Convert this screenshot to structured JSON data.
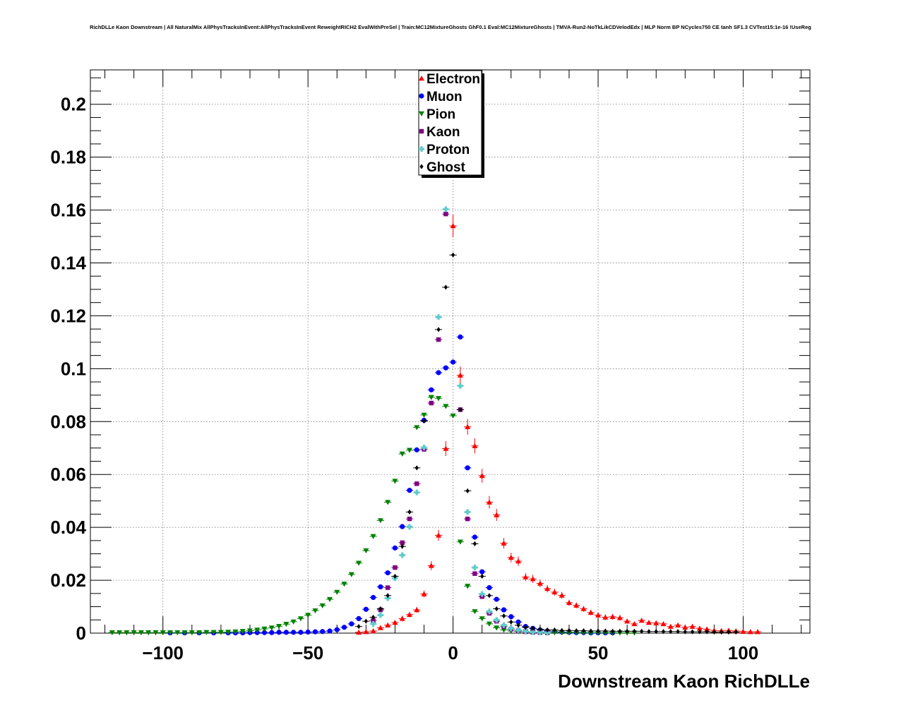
{
  "title": "RichDLLe Kaon Downstream | All NaturalMix AllPhysTracksInEvent:AllPhysTracksInEvent ReweightRICH2 EvalWithPreSel | Train:MC12MixtureGhosts GhF0.1 Eval:MC12MixtureGhosts | TMVA-Run2-NoTkLikCDVelodEdx | MLP Norm BP NCycles750 CE tanh SF1.3 CVTest15:1e-16 !UseReg",
  "chart_data": {
    "type": "scatter",
    "title": "RichDLLe Kaon Downstream | All NaturalMix AllPhysTracksInEvent:AllPhysTracksInEvent ReweightRICH2 EvalWithPreSel | Train:MC12MixtureGhosts GhF0.1 Eval:MC12MixtureGhosts | TMVA-Run2-NoTkLikCDVelodEdx | MLP Norm BP NCycles750 CE tanh SF1.3 CVTest15:1e-16 !UseReg",
    "xlabel": "Downstream Kaon RichDLLe",
    "ylabel": "",
    "xlim": [
      -125,
      123
    ],
    "ylim": [
      0,
      0.213
    ],
    "x_ticks": [
      -100,
      -50,
      0,
      50,
      100
    ],
    "x_tick_labels": [
      "−100",
      "−50",
      "0",
      "50",
      "100"
    ],
    "y_ticks": [
      0,
      0.02,
      0.04,
      0.06,
      0.08,
      0.1,
      0.12,
      0.14,
      0.16,
      0.18,
      0.2
    ],
    "y_tick_labels": [
      "0",
      "0.02",
      "0.04",
      "0.06",
      "0.08",
      "0.1",
      "0.12",
      "0.14",
      "0.16",
      "0.18",
      "0.2"
    ],
    "grid": true,
    "legend_position": "top-center",
    "series": [
      {
        "name": "Electron",
        "color": "#ff0000",
        "marker": "triangle-up",
        "x": [
          -32.5,
          -30,
          -27.5,
          -25,
          -22.5,
          -20,
          -17.5,
          -15,
          -12.5,
          -10,
          -7.5,
          -5,
          -2.5,
          0,
          2.5,
          5,
          7.5,
          10,
          12.5,
          15,
          17.5,
          20,
          22.5,
          25,
          27.5,
          30,
          32.5,
          35,
          37.5,
          40,
          42.5,
          45,
          47.5,
          50,
          52.5,
          55,
          57.5,
          60,
          62.5,
          65,
          67.5,
          70,
          72.5,
          75,
          77.5,
          80,
          82.5,
          85,
          87.5,
          90,
          92.5,
          95,
          97.5,
          100,
          102.5,
          105
        ],
        "y": [
          0.0003,
          0.0005,
          0.0008,
          0.002,
          0.003,
          0.004,
          0.0055,
          0.007,
          0.0088,
          0.0148,
          0.0255,
          0.037,
          0.0698,
          0.154,
          0.0975,
          0.078,
          0.0708,
          0.0595,
          0.0495,
          0.0447,
          0.034,
          0.0286,
          0.0272,
          0.0212,
          0.0205,
          0.0188,
          0.0168,
          0.0155,
          0.0143,
          0.0115,
          0.0105,
          0.0092,
          0.0078,
          0.0068,
          0.006,
          0.0062,
          0.0058,
          0.0045,
          0.0035,
          0.0048,
          0.004,
          0.0038,
          0.0035,
          0.0025,
          0.003,
          0.0022,
          0.0025,
          0.0018,
          0.0015,
          0.001,
          0.0009,
          0.001,
          0.0008,
          0.0006,
          0.0005,
          0.0005
        ]
      },
      {
        "name": "Muon",
        "color": "#0000ff",
        "marker": "circle",
        "x": [
          -97.5,
          -92.5,
          -87.5,
          -82.5,
          -77.5,
          -75,
          -72.5,
          -70,
          -67.5,
          -65,
          -62.5,
          -60,
          -57.5,
          -55,
          -52.5,
          -50,
          -47.5,
          -45,
          -42.5,
          -40,
          -37.5,
          -35,
          -32.5,
          -30,
          -27.5,
          -25,
          -22.5,
          -20,
          -17.5,
          -15,
          -12.5,
          -10,
          -7.5,
          -5,
          -2.5,
          0,
          2.5,
          5,
          7.5,
          10,
          12.5,
          15,
          17.5,
          20,
          22.5,
          25,
          27.5,
          30,
          32.5,
          35,
          37.5,
          40,
          42.5,
          45,
          47.5,
          50,
          52.5,
          55
        ],
        "y": [
          0.0001,
          0.0001,
          0.0001,
          0.0001,
          0.0001,
          0.0001,
          0.0001,
          0.0002,
          0.0002,
          0.0002,
          0.0002,
          0.0003,
          0.0003,
          0.0003,
          0.0003,
          0.0004,
          0.0005,
          0.0006,
          0.0008,
          0.0013,
          0.0022,
          0.0035,
          0.0055,
          0.009,
          0.0135,
          0.0175,
          0.0228,
          0.0322,
          0.0403,
          0.054,
          0.0693,
          0.0805,
          0.092,
          0.0985,
          0.1003,
          0.1025,
          0.112,
          0.0625,
          0.0363,
          0.0232,
          0.0172,
          0.0128,
          0.0088,
          0.0062,
          0.0042,
          0.0025,
          0.0018,
          0.0012,
          0.0008,
          0.0006,
          0.0004,
          0.0003,
          0.0002,
          0.0002,
          0.0001,
          0.0001,
          0.0001,
          0.0001
        ]
      },
      {
        "name": "Pion",
        "color": "#008000",
        "marker": "triangle-down",
        "x": [
          -117.5,
          -115,
          -112.5,
          -110,
          -107.5,
          -105,
          -102.5,
          -100,
          -97.5,
          -95,
          -92.5,
          -90,
          -87.5,
          -85,
          -82.5,
          -80,
          -77.5,
          -75,
          -72.5,
          -70,
          -67.5,
          -65,
          -62.5,
          -60,
          -57.5,
          -55,
          -52.5,
          -50,
          -47.5,
          -45,
          -42.5,
          -40,
          -37.5,
          -35,
          -32.5,
          -30,
          -27.5,
          -25,
          -22.5,
          -20,
          -17.5,
          -15,
          -12.5,
          -10,
          -7.5,
          -5,
          -2.5,
          0,
          2.5,
          5,
          7.5,
          10,
          12.5,
          15,
          17.5,
          20,
          22.5,
          25,
          27.5,
          30,
          32.5,
          35,
          37.5,
          40,
          42.5,
          45,
          47.5,
          50,
          52.5,
          55,
          57.5,
          60,
          62.5
        ],
        "y": [
          0.0002,
          0.0002,
          0.0002,
          0.0002,
          0.0002,
          0.0002,
          0.0002,
          0.0002,
          0.0002,
          0.0002,
          0.0002,
          0.0002,
          0.0002,
          0.0003,
          0.0003,
          0.0003,
          0.0004,
          0.0005,
          0.0007,
          0.0009,
          0.0012,
          0.0016,
          0.002,
          0.0026,
          0.0034,
          0.0043,
          0.0055,
          0.0068,
          0.0085,
          0.0104,
          0.0128,
          0.0155,
          0.0186,
          0.0222,
          0.0265,
          0.0312,
          0.0366,
          0.0426,
          0.0495,
          0.0575,
          0.0678,
          0.0692,
          0.0778,
          0.0825,
          0.0892,
          0.0888,
          0.0858,
          0.0822,
          0.0345,
          0.0178,
          0.0082,
          0.0055,
          0.0035,
          0.002,
          0.0012,
          0.0008,
          0.0006,
          0.0005,
          0.0004,
          0.0003,
          0.0003,
          0.0002,
          0.0002,
          0.0002,
          0.0002,
          0.0001,
          0.0001,
          0.0001,
          0.0001,
          0.0001,
          0.0001,
          0.0001,
          0.0001
        ]
      },
      {
        "name": "Kaon",
        "color": "#800080",
        "marker": "square",
        "x": [
          -27.5,
          -25,
          -22.5,
          -20,
          -17.5,
          -15,
          -12.5,
          -10,
          -7.5,
          -5,
          -2.5,
          0,
          2.5,
          5,
          7.5,
          10,
          12.5,
          15,
          17.5,
          20,
          22.5,
          25,
          27.5,
          30,
          32.5
        ],
        "y": [
          0.0048,
          0.0088,
          0.0172,
          0.0248,
          0.0342,
          0.0432,
          0.0565,
          0.0695,
          0.087,
          0.111,
          0.1585,
          0.0,
          0.0845,
          0.0432,
          0.0225,
          0.0138,
          0.0075,
          0.0045,
          0.0025,
          0.0015,
          0.0009,
          0.0005,
          0.0003,
          0.0002,
          0.0001
        ]
      },
      {
        "name": "Proton",
        "color": "#5fcccc",
        "marker": "cross",
        "x": [
          -27.5,
          -25,
          -22.5,
          -20,
          -17.5,
          -15,
          -12.5,
          -10,
          -7.5,
          -5,
          -2.5,
          0,
          2.5,
          5,
          7.5,
          10,
          12.5,
          15,
          17.5,
          20,
          22.5,
          25,
          27.5,
          30,
          32.5
        ],
        "y": [
          0.0035,
          0.0068,
          0.0132,
          0.0208,
          0.0295,
          0.0402,
          0.0532,
          0.0702,
          0.0,
          0.1195,
          0.1603,
          0.0,
          0.0935,
          0.0458,
          0.0248,
          0.0148,
          0.0082,
          0.005,
          0.003,
          0.0018,
          0.0011,
          0.0007,
          0.0004,
          0.0003,
          0.0002
        ]
      },
      {
        "name": "Ghost",
        "color": "#000000",
        "marker": "diamond",
        "x": [
          -32.5,
          -30,
          -27.5,
          -25,
          -22.5,
          -20,
          -17.5,
          -15,
          -12.5,
          -10,
          -7.5,
          -5,
          -2.5,
          0,
          2.5,
          5,
          7.5,
          10,
          12.5,
          15,
          17.5,
          20,
          22.5,
          25,
          27.5,
          30,
          32.5,
          35,
          37.5,
          40,
          42.5,
          45,
          47.5,
          50,
          52.5,
          55,
          57.5,
          60,
          62.5,
          65,
          67.5,
          70,
          72.5,
          75,
          77.5,
          80,
          82.5,
          85,
          87.5,
          90,
          92.5,
          95,
          97.5
        ],
        "y": [
          0.0025,
          0.0045,
          0.006,
          0.0092,
          0.0142,
          0.0215,
          0.0328,
          0.0458,
          0.0625,
          0.0802,
          0.0,
          0.1148,
          0.1308,
          0.143,
          0.0845,
          0.0538,
          0.0338,
          0.0215,
          0.0142,
          0.0092,
          0.0065,
          0.0042,
          0.003,
          0.0022,
          0.0018,
          0.0015,
          0.0012,
          0.0012,
          0.001,
          0.001,
          0.0009,
          0.0009,
          0.0008,
          0.0008,
          0.0008,
          0.0007,
          0.0007,
          0.0007,
          0.0007,
          0.0007,
          0.0006,
          0.0006,
          0.0006,
          0.0006,
          0.0006,
          0.0005,
          0.0005,
          0.0005,
          0.0005,
          0.0004,
          0.0004,
          0.0004,
          0.0004
        ]
      }
    ]
  }
}
